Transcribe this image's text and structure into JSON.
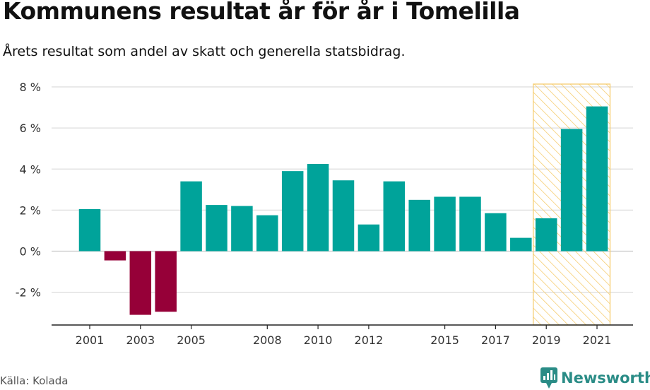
{
  "title": "Kommunens resultat år för år i Tomelilla",
  "subtitle": "Årets resultat som andel av skatt och generella statsbidrag.",
  "source": "Källa: Kolada",
  "brand": "Newsworthy",
  "colors": {
    "positive": "#00a39a",
    "negative": "#960038",
    "highlight_hatch": "#f6cd70",
    "brand": "#2a8c86"
  },
  "chart_data": {
    "type": "bar",
    "title": "Kommunens resultat år för år i Tomelilla",
    "xlabel": "",
    "ylabel": "",
    "ylim": [
      -3.5,
      8
    ],
    "y_ticks": [
      -2,
      0,
      2,
      4,
      6,
      8
    ],
    "y_tick_labels": [
      "-2 %",
      "0 %",
      "2 %",
      "4 %",
      "6 %",
      "8 %"
    ],
    "x_tick_labels": [
      "2001",
      "2003",
      "2005",
      "2008",
      "2010",
      "2012",
      "2015",
      "2017",
      "2019",
      "2021"
    ],
    "categories": [
      2001,
      2002,
      2003,
      2004,
      2005,
      2006,
      2007,
      2008,
      2009,
      2010,
      2011,
      2012,
      2013,
      2014,
      2015,
      2016,
      2017,
      2018,
      2019,
      2020,
      2021
    ],
    "values": [
      2.05,
      -0.45,
      -3.1,
      -2.95,
      3.4,
      2.25,
      2.2,
      1.75,
      3.9,
      4.25,
      3.45,
      1.3,
      3.4,
      2.5,
      2.65,
      2.65,
      1.85,
      0.65,
      1.6,
      5.95,
      7.05
    ],
    "highlight_range": [
      2019,
      2021
    ],
    "grid": true
  }
}
